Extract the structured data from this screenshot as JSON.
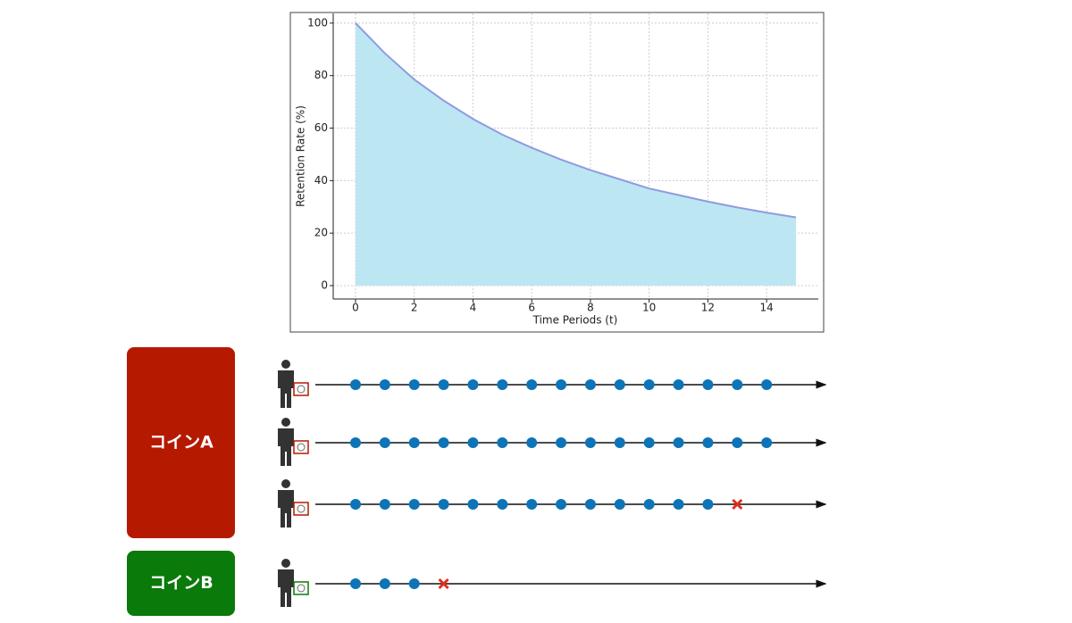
{
  "chart_data": {
    "type": "area",
    "xlabel": "Time Periods (t)",
    "ylabel": "Retention Rate (%)",
    "x": [
      0,
      1,
      2,
      3,
      4,
      5,
      6,
      7,
      8,
      9,
      10,
      11,
      12,
      13,
      14,
      15
    ],
    "values": [
      100,
      88.5,
      78.5,
      70.5,
      63.5,
      57.5,
      52.5,
      48,
      44,
      40.5,
      37,
      34.5,
      32,
      29.8,
      27.8,
      26
    ],
    "color": "#8f9be0",
    "fill": "#bde6f3",
    "xlim": [
      -0.76,
      15.76
    ],
    "xticks": [
      0,
      2,
      4,
      6,
      8,
      10,
      12,
      14
    ],
    "ylim": [
      -5.1,
      103.7
    ],
    "yticks": [
      0,
      20,
      40,
      60,
      80,
      100
    ],
    "grid": true
  },
  "diagram": {
    "groups": [
      {
        "label": "コインA",
        "color": "#b51a00",
        "rows": [
          {
            "periods": 15
          },
          {
            "periods": 15
          },
          {
            "periods": 13,
            "dropout": 13
          }
        ]
      },
      {
        "label": "コインB",
        "color": "#0a7a0a",
        "rows": [
          {
            "periods": 3,
            "dropout": 3
          }
        ]
      }
    ]
  }
}
